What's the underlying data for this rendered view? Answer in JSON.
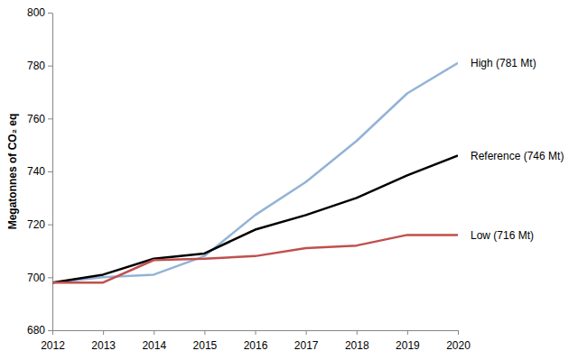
{
  "chart_data": {
    "type": "line",
    "y_label": "Megatonnes of CO₂ eq",
    "x": [
      2012,
      2013,
      2014,
      2015,
      2016,
      2017,
      2018,
      2019,
      2020
    ],
    "series": [
      {
        "name": "High (781 Mt)",
        "color": "#93b3d7",
        "values": [
          698,
          700,
          701,
          708,
          723.5,
          736,
          751.5,
          769.5,
          781
        ]
      },
      {
        "name": "Reference (746 Mt)",
        "color": "#000000",
        "values": [
          698,
          701,
          707,
          709,
          718,
          723.5,
          730,
          738.5,
          746
        ]
      },
      {
        "name": "Low (716 Mt)",
        "color": "#c0504d",
        "values": [
          698,
          698,
          706.5,
          707,
          708,
          711,
          712,
          716,
          716
        ]
      }
    ],
    "xlim": [
      2012,
      2020
    ],
    "xticks": [
      2012,
      2013,
      2014,
      2015,
      2016,
      2017,
      2018,
      2019,
      2020
    ],
    "ylim": [
      680,
      800
    ],
    "yticks": [
      680,
      700,
      720,
      740,
      760,
      780,
      800
    ],
    "grid": false
  }
}
